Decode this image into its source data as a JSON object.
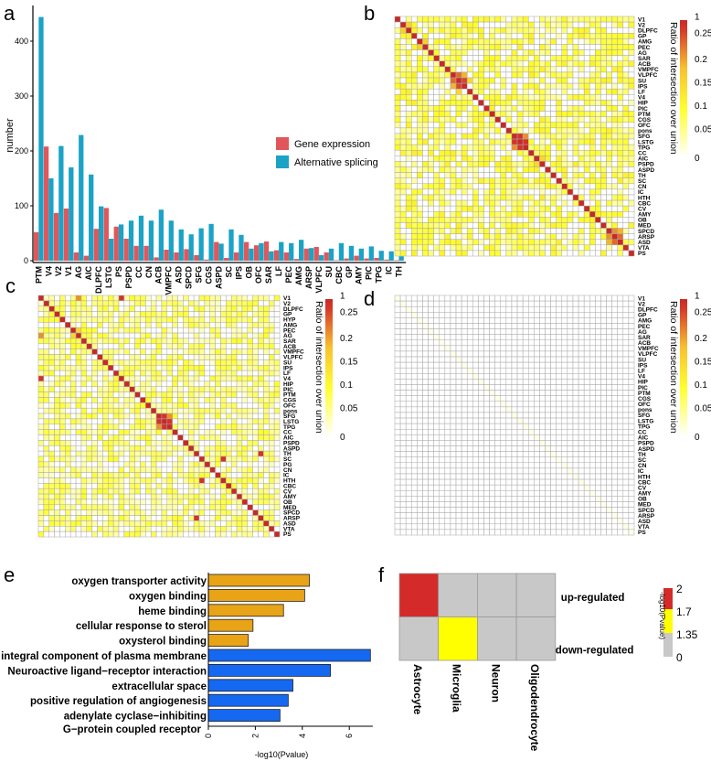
{
  "panels": {
    "a": "a",
    "b": "b",
    "c": "c",
    "d": "d",
    "e": "e",
    "f": "f"
  },
  "chart_data": [
    {
      "id": "a",
      "type": "bar",
      "ylabel": "number",
      "xlabel": "",
      "ylim": [
        0,
        450
      ],
      "yticks": [
        0,
        100,
        200,
        300,
        400
      ],
      "legend_position": "top-right",
      "categories": [
        "PTM",
        "V4",
        "V2",
        "V1",
        "AG",
        "AIC",
        "DLPFC",
        "LSTG",
        "PS",
        "PSPD",
        "CC",
        "CN",
        "ACB",
        "VMPFC",
        "ASD",
        "SPCD",
        "SFG",
        "CGS",
        "ASPD",
        "SC",
        "IPS",
        "OB",
        "OFC",
        "SAR",
        "LF",
        "PEC",
        "AMG",
        "ARSP",
        "VLPFC",
        "SU",
        "CBC",
        "GP",
        "AMY",
        "PIC",
        "TPG",
        "IC",
        "TH"
      ],
      "series": [
        {
          "name": "Gene expression",
          "color": "#E0575B",
          "values": [
            52,
            208,
            87,
            95,
            15,
            9,
            58,
            96,
            62,
            40,
            27,
            27,
            6,
            20,
            15,
            21,
            10,
            2,
            34,
            5,
            15,
            34,
            28,
            35,
            19,
            15,
            3,
            22,
            25,
            15,
            1,
            4,
            9,
            4,
            5,
            2,
            1
          ]
        },
        {
          "name": "Alternative splicing",
          "color": "#1BA3C6",
          "values": [
            444,
            150,
            209,
            170,
            229,
            157,
            99,
            40,
            66,
            73,
            82,
            73,
            93,
            73,
            57,
            48,
            59,
            67,
            31,
            57,
            47,
            22,
            32,
            17,
            34,
            32,
            38,
            23,
            10,
            22,
            32,
            27,
            22,
            26,
            18,
            17,
            8
          ]
        }
      ]
    },
    {
      "id": "b",
      "type": "heatmap",
      "labels": [
        "V1",
        "V2",
        "DLPFC",
        "GP",
        "AMG",
        "PEC",
        "AG",
        "SAR",
        "ACB",
        "VMPFC",
        "VLPFC",
        "SU",
        "IPS",
        "LF",
        "V4",
        "HIP",
        "PIC",
        "PTM",
        "CGS",
        "OFC",
        "pons",
        "SFG",
        "LSTG",
        "TPG",
        "CC",
        "AIC",
        "PSPD",
        "ASPD",
        "TH",
        "SC",
        "CN",
        "IC",
        "HTH",
        "CBC",
        "CV",
        "AMY",
        "OB",
        "MED",
        "SPCD",
        "ARSP",
        "ASD",
        "VTA",
        "PS"
      ],
      "diagonal": 1,
      "offdiag_range": [
        0.03,
        0.12
      ],
      "highlights": [
        [
          "VLPFC",
          "SU",
          0.22
        ],
        [
          "SU",
          "IPS",
          0.24
        ],
        [
          "VLPFC",
          "IPS",
          0.18
        ],
        [
          "PEC",
          "AMG",
          0.16
        ],
        [
          "LF",
          "SU",
          0.15
        ],
        [
          "SFG",
          "LSTG",
          0.25
        ],
        [
          "LSTG",
          "TPG",
          0.25
        ],
        [
          "SFG",
          "TPG",
          0.2
        ],
        [
          "AIC",
          "PSPD",
          0.15
        ],
        [
          "SPCD",
          "ARSP",
          0.2
        ],
        [
          "SPCD",
          "ASD",
          0.18
        ],
        [
          "ARSP",
          "ASD",
          0.22
        ],
        [
          "V2",
          "DLPFC",
          0.16
        ]
      ],
      "colorbar": {
        "title": "Ratio of intersection over union",
        "ticks": [
          "1",
          "0.25",
          "0.2",
          "0.15",
          "0.1",
          "0.05",
          "0"
        ]
      }
    },
    {
      "id": "c",
      "type": "heatmap",
      "labels": [
        "V1",
        "V2",
        "DLPFC",
        "GP",
        "HYP",
        "AMG",
        "PEC",
        "AG",
        "SAR",
        "ACB",
        "VMPFC",
        "VLPFC",
        "SU",
        "IPS",
        "LF",
        "V4",
        "HIP",
        "PIC",
        "PTM",
        "CGS",
        "OFC",
        "pons",
        "SFG",
        "LSTG",
        "TPG",
        "CC",
        "AIC",
        "PSPD",
        "ASPD",
        "TH",
        "SC",
        "PG",
        "CN",
        "IC",
        "HTH",
        "CBC",
        "CV",
        "AMY",
        "OB",
        "MED",
        "SPCD",
        "ARSP",
        "ASD",
        "VTA",
        "PS"
      ],
      "diagonal": 1,
      "offdiag_range": [
        0.02,
        0.1
      ],
      "highlights": [
        [
          "V4",
          "V1",
          0.25
        ],
        [
          "SFG",
          "LSTG",
          0.25
        ],
        [
          "LSTG",
          "TPG",
          0.25
        ],
        [
          "SFG",
          "TPG",
          0.2
        ],
        [
          "V1",
          "AG",
          0.2
        ],
        [
          "AG",
          "PEC",
          0.15
        ],
        [
          "HTH",
          "SC",
          0.25
        ],
        [
          "TH",
          "ARSP",
          0.25
        ]
      ],
      "colorbar": {
        "title": "Ratio of intersection over union",
        "ticks": [
          "1",
          "0.25",
          "0.2",
          "0.15",
          "0.1",
          "0.05",
          "0"
        ]
      }
    },
    {
      "id": "d",
      "type": "heatmap",
      "labels": [
        "V1",
        "V2",
        "DLPFC",
        "GP",
        "AMG",
        "PEC",
        "AG",
        "SAR",
        "ACB",
        "VMPFC",
        "VLPFC",
        "SU",
        "IPS",
        "LF",
        "V4",
        "HIP",
        "PIC",
        "PTM",
        "CGS",
        "OFC",
        "pons",
        "SFG",
        "LSTG",
        "TPG",
        "CC",
        "AIC",
        "PSPD",
        "ASPD",
        "TH",
        "SC",
        "CN",
        "IC",
        "HTH",
        "CBC",
        "CV",
        "AMY",
        "OB",
        "MED",
        "SPCD",
        "ARSP",
        "ASD",
        "VTA",
        "PS"
      ],
      "diagonal": 0.01,
      "offdiag_range": [
        0,
        0.005
      ],
      "highlights": [],
      "colorbar": {
        "title": "Ratio of intersection over union",
        "ticks": [
          "1",
          "0.25",
          "0.2",
          "0.15",
          "0.1",
          "0.05",
          "0"
        ]
      }
    },
    {
      "id": "e",
      "type": "bar",
      "orientation": "horizontal",
      "xlabel": "-log10(Pvalue)",
      "xlim": [
        0,
        7
      ],
      "xticks": [
        0,
        2,
        4,
        6
      ],
      "categories": [
        "oxygen transporter activity",
        "oxygen binding",
        "heme binding",
        "cellular response to sterol",
        "oxysterol binding",
        "integral component of plasma membrane",
        "Neuroactive ligand−receptor interaction",
        "extracellular space",
        "positive regulation of angiogenesis",
        "adenylate cyclase−inhibiting"
      ],
      "extra_label": "G−protein coupled receptor",
      "values": [
        4.3,
        4.1,
        3.2,
        1.9,
        1.7,
        6.9,
        5.2,
        3.6,
        3.4,
        3.05
      ],
      "colors": [
        "#E8A317",
        "#E8A317",
        "#E8A317",
        "#E8A317",
        "#E8A317",
        "#1569F0",
        "#1569F0",
        "#1569F0",
        "#1569F0",
        "#1569F0"
      ]
    },
    {
      "id": "f",
      "type": "heatmap",
      "rows": [
        "up-regulated",
        "down-regulated"
      ],
      "columns": [
        "Astrocyte",
        "Microglia",
        "Neuron",
        "Oligodendrocyte"
      ],
      "values": [
        [
          2,
          0,
          0,
          0
        ],
        [
          0,
          1.7,
          0,
          0
        ]
      ],
      "legend": {
        "title": "-log10(Pvalue)",
        "ticks": [
          "2",
          "1.7",
          "1.35",
          "0"
        ],
        "colors": [
          "#D42A2A",
          "#FFFF00",
          "#C8C8C8"
        ]
      }
    }
  ]
}
